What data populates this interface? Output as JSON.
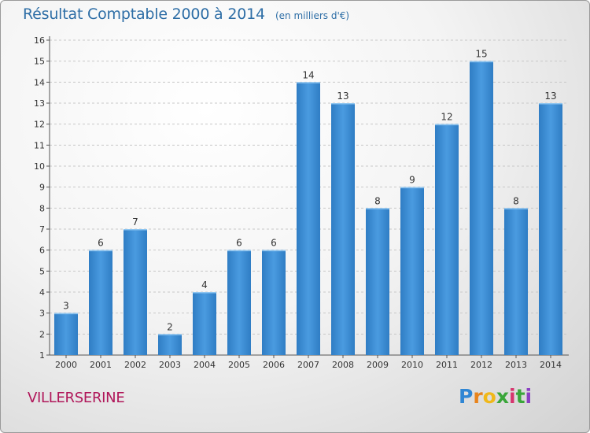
{
  "chart_data": {
    "type": "bar",
    "title": "Résultat Comptable 2000 à 2014",
    "subtitle": "(en milliers d'€)",
    "categories": [
      "2000",
      "2001",
      "2002",
      "2003",
      "2004",
      "2005",
      "2006",
      "2007",
      "2008",
      "2009",
      "2010",
      "2011",
      "2012",
      "2013",
      "2014"
    ],
    "values": [
      3,
      6,
      7,
      2,
      4,
      6,
      6,
      14,
      13,
      8,
      9,
      12,
      15,
      8,
      13
    ],
    "y_ticks": [
      "1",
      "2",
      "3",
      "4",
      "5",
      "6",
      "7",
      "8",
      "9",
      "10",
      "11",
      "12",
      "13",
      "14",
      "15",
      "16"
    ],
    "ylim": [
      1,
      16
    ],
    "xlabel": "",
    "ylabel": "",
    "bar_color": "#4a9be0",
    "bar_color_dark": "#2f7dc4"
  },
  "footer": {
    "place": "VILLERSERINE",
    "logo_letters": [
      "P",
      "r",
      "o",
      "x",
      "i",
      "t",
      "i"
    ],
    "logo_colors": [
      "#2f86d4",
      "#e8841c",
      "#f0b81a",
      "#3aa63a",
      "#d6356e",
      "#3aa63a",
      "#8a3fc2"
    ]
  }
}
